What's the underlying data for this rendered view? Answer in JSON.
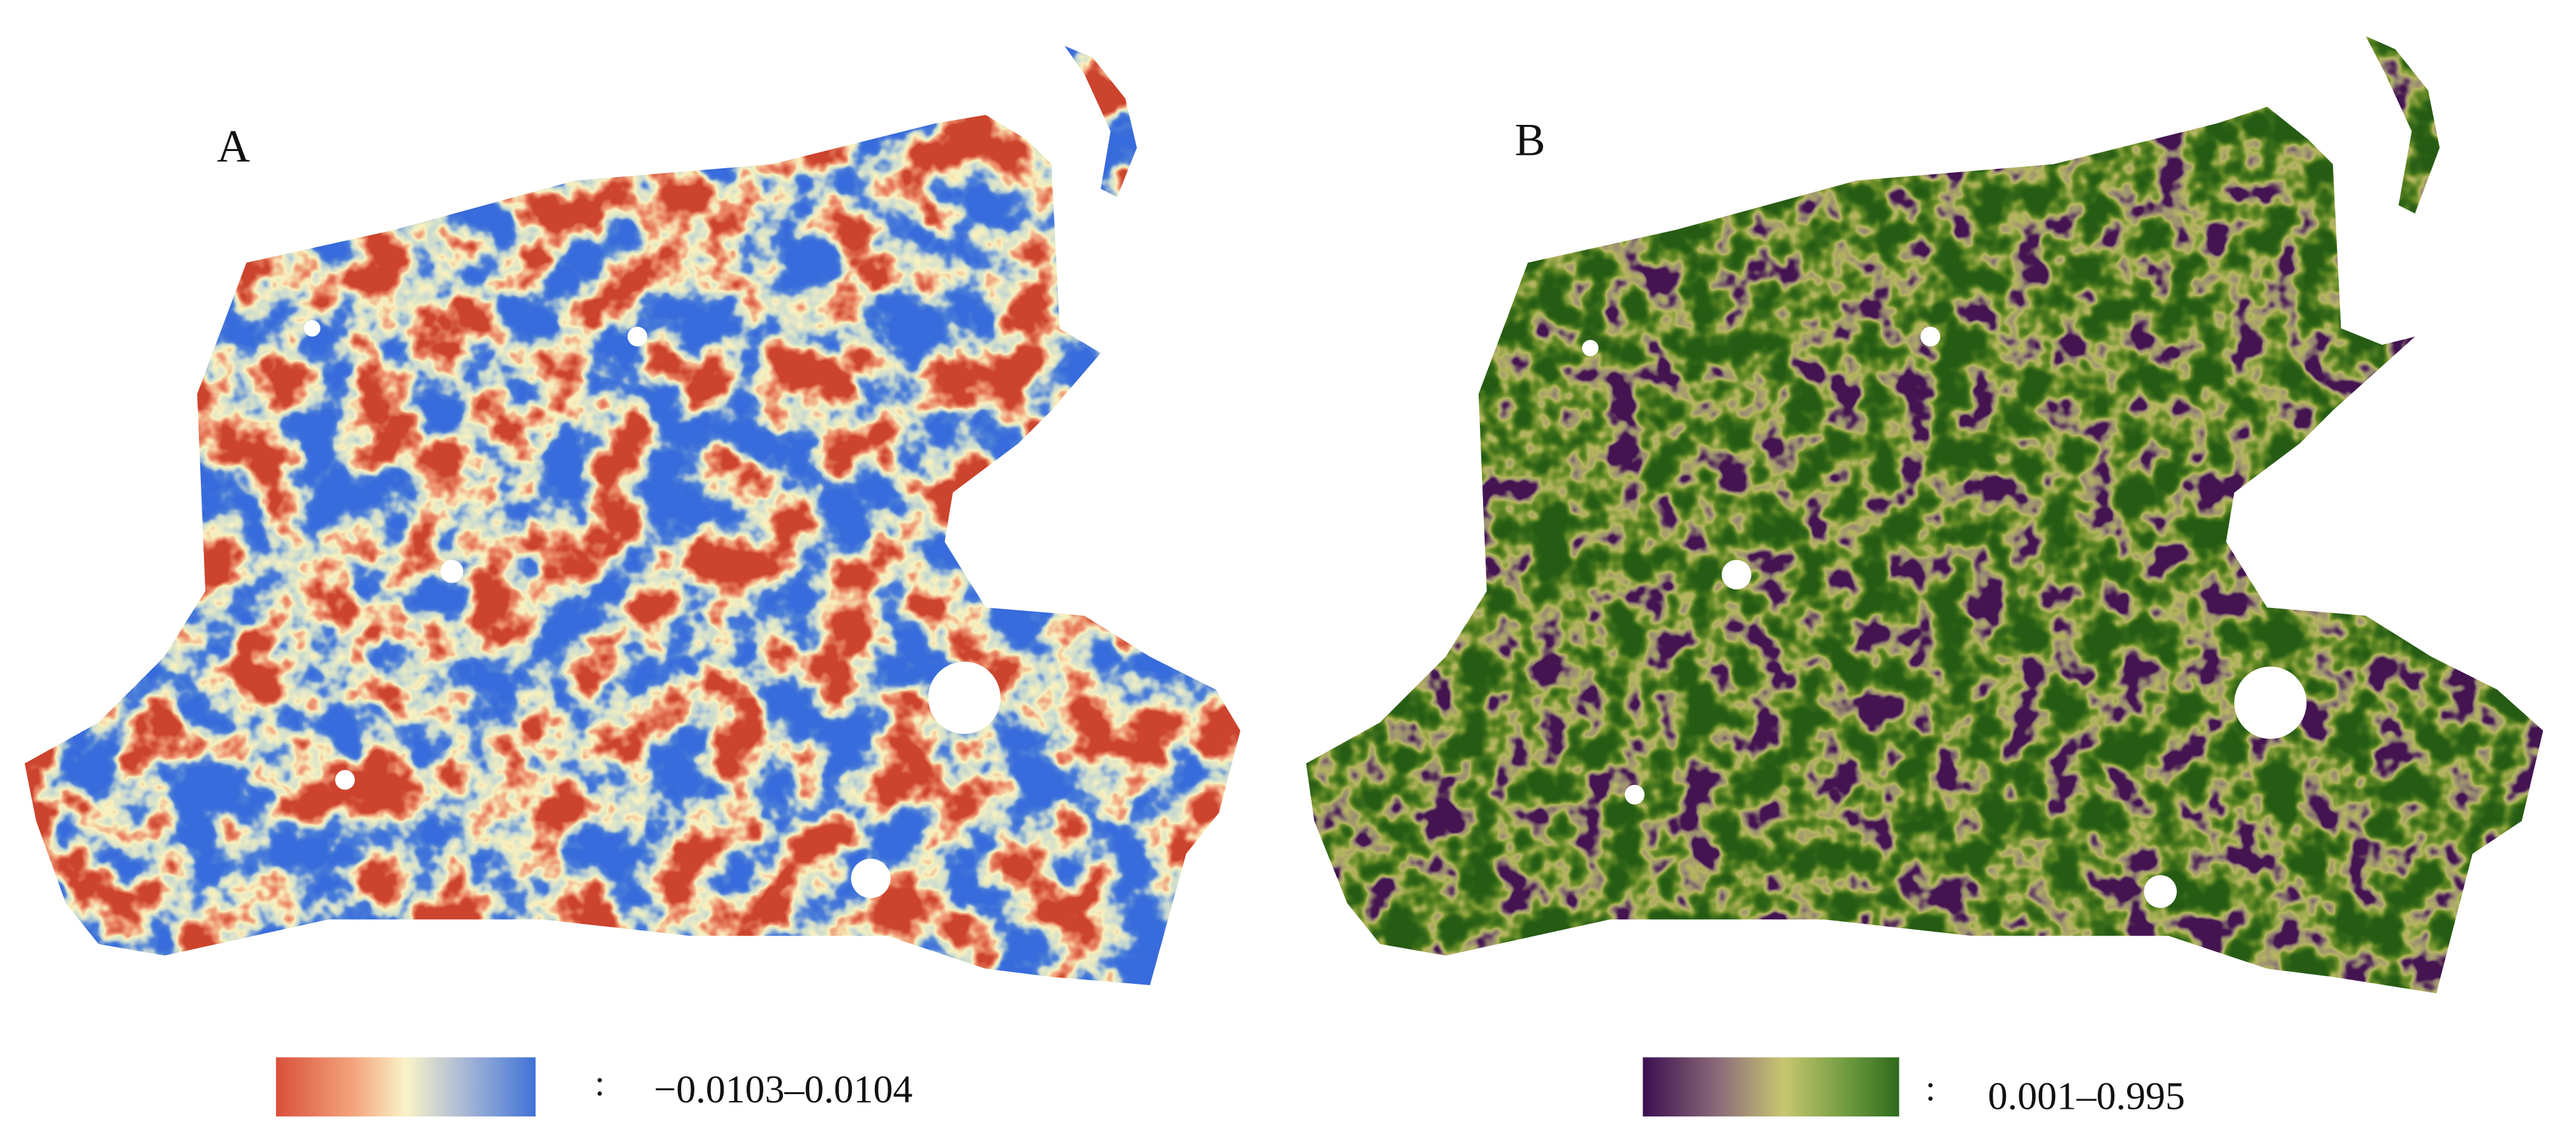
{
  "panels": [
    {
      "label": "A",
      "legend": {
        "separator": ":",
        "range": "−0.0103–0.0104"
      }
    },
    {
      "label": "B",
      "legend": {
        "separator": ":",
        "range": "0.001–0.995"
      }
    }
  ]
}
